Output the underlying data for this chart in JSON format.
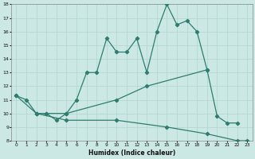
{
  "xlabel": "Humidex (Indice chaleur)",
  "line_color": "#2e7d6e",
  "bg_color": "#cce8e4",
  "grid_color": "#b0d4cf",
  "ylim": [
    8,
    18
  ],
  "xlim": [
    -0.5,
    23.5
  ],
  "yticks": [
    8,
    9,
    10,
    11,
    12,
    13,
    14,
    15,
    16,
    17,
    18
  ],
  "xticks": [
    0,
    1,
    2,
    3,
    4,
    5,
    6,
    7,
    8,
    9,
    10,
    11,
    12,
    13,
    14,
    15,
    16,
    17,
    18,
    19,
    20,
    21,
    22,
    23
  ],
  "line1_x": [
    0,
    1,
    2,
    3,
    4,
    5,
    6,
    7,
    8,
    9,
    10,
    11,
    12,
    13,
    14,
    15,
    16,
    17,
    18,
    19,
    20,
    21,
    22
  ],
  "line1_y": [
    11.3,
    11.0,
    10.0,
    10.0,
    9.5,
    10.0,
    11.0,
    13.0,
    13.0,
    15.5,
    14.5,
    14.5,
    15.5,
    13.0,
    16.0,
    18.0,
    16.5,
    16.8,
    16.0,
    13.2,
    9.8,
    9.3,
    9.3
  ],
  "line2_x": [
    0,
    2,
    3,
    5,
    10,
    13,
    19
  ],
  "line2_y": [
    11.3,
    10.0,
    10.0,
    10.0,
    11.0,
    12.0,
    13.2
  ],
  "line3_x": [
    2,
    5,
    10,
    15,
    19,
    22,
    23
  ],
  "line3_y": [
    10.0,
    9.5,
    9.5,
    9.0,
    8.5,
    8.0,
    8.0
  ]
}
